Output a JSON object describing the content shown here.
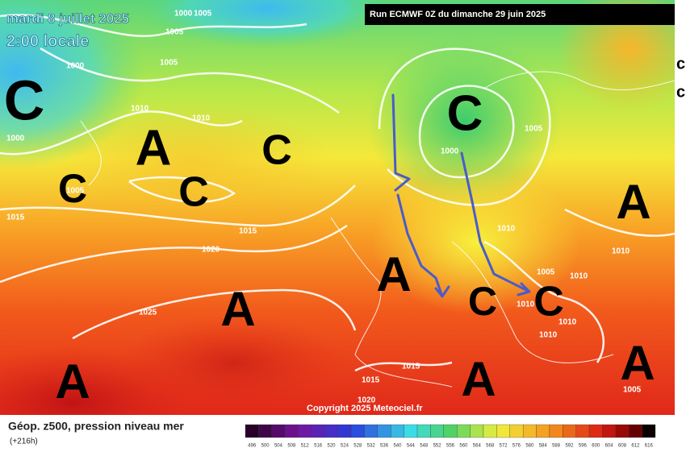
{
  "header": {
    "date": "mardi 8 juillet 2025",
    "time": "2:00 locale",
    "run": "Run ECMWF 0Z du dimanche 29 juin 2025"
  },
  "copyright": "Copyright 2025 Meteociel.fr",
  "footer": {
    "title": "Géop. z500, pression niveau mer",
    "lead": "(+216h)"
  },
  "scale": [
    496,
    500,
    504,
    508,
    512,
    516,
    520,
    524,
    528,
    532,
    536,
    540,
    544,
    548,
    552,
    556,
    560,
    564,
    568,
    572,
    576,
    580,
    584,
    588,
    592,
    596,
    600,
    604,
    608,
    612,
    616
  ],
  "pressure_centers": [
    "C",
    "A",
    "C",
    "C",
    "C",
    "C",
    "A",
    "A",
    "C",
    "C",
    "A",
    "A",
    "A",
    "A"
  ],
  "isobar_labels": [
    1000,
    1005,
    1005,
    1000,
    1005,
    1010,
    1010,
    1000,
    1005,
    1015,
    1015,
    1020,
    1025,
    1000,
    1005,
    1010,
    1005,
    1010,
    1010,
    1010,
    1010,
    1010,
    1015,
    1015,
    1020,
    1005
  ],
  "edge_letters": [
    "c",
    "c"
  ]
}
